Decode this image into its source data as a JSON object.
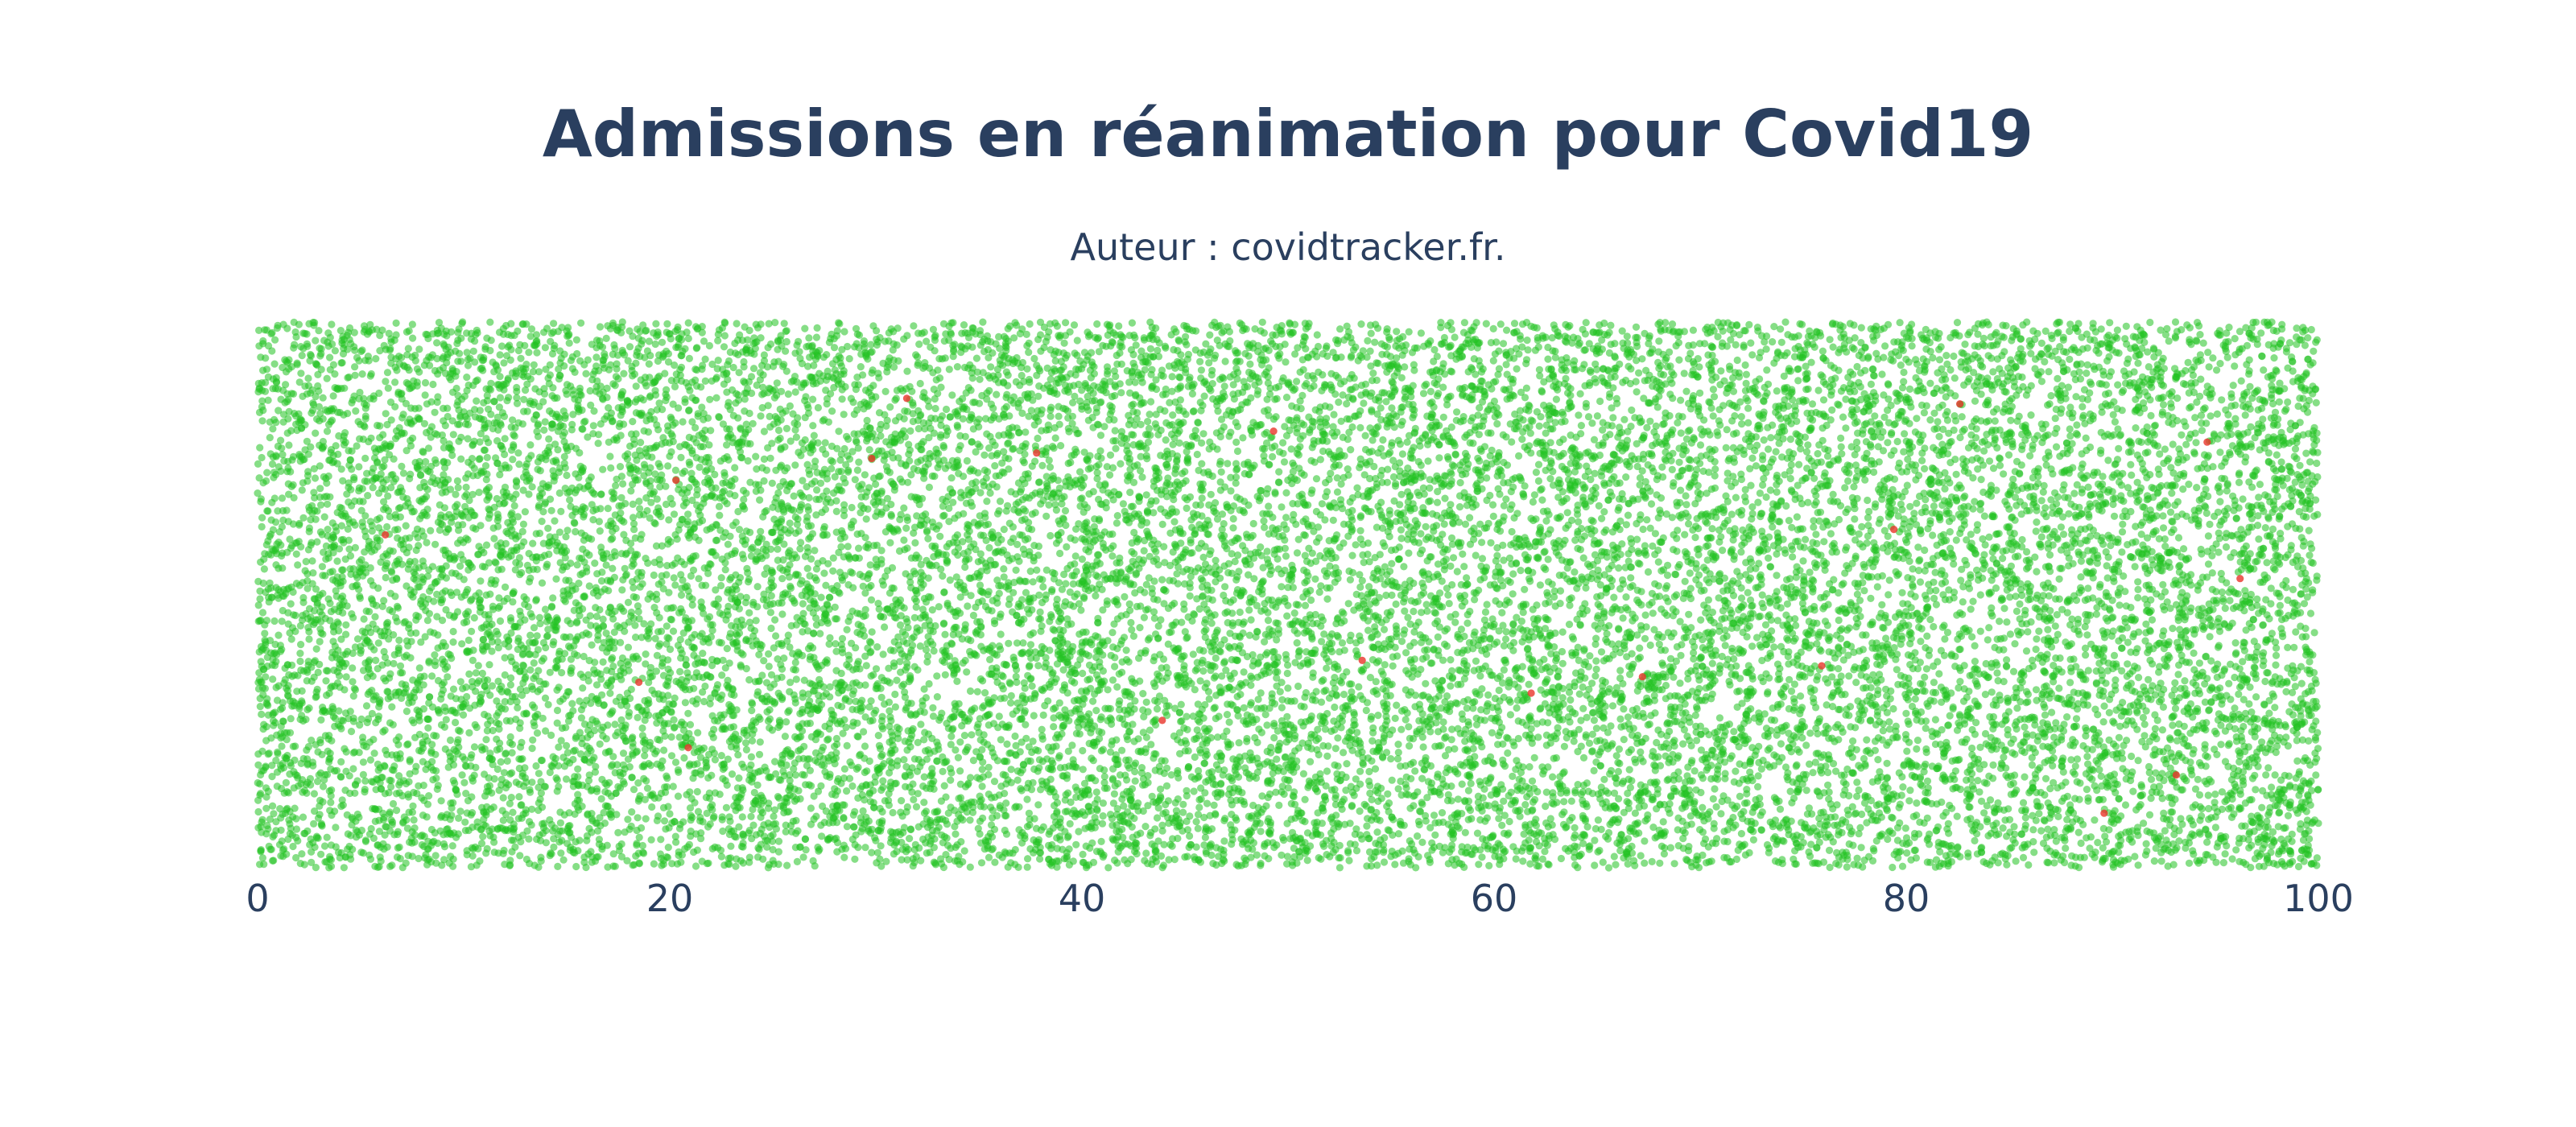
{
  "chart_data": {
    "type": "scatter",
    "title": "Admissions en réanimation pour Covid19",
    "subtitle": "Auteur : covidtracker.fr.",
    "xlim": [
      0,
      100
    ],
    "xticks": [
      0,
      20,
      40,
      60,
      80,
      100
    ],
    "x_tick_labels": [
      "0",
      "20",
      "40",
      "60",
      "80",
      "100"
    ],
    "ylim": [
      0,
      1
    ],
    "yaxis_visible": false,
    "grid": false,
    "legend": "none",
    "series": [
      {
        "color": "#22c322",
        "marker": "circle",
        "opacity": 0.55,
        "approx_point_count": 20000
      },
      {
        "color": "#e8342a",
        "marker": "circle",
        "opacity": 0.8,
        "points": [
          {
            "x": 6.2,
            "y": 0.61
          },
          {
            "x": 18.5,
            "y": 0.34
          },
          {
            "x": 20.3,
            "y": 0.71
          },
          {
            "x": 20.9,
            "y": 0.22
          },
          {
            "x": 29.8,
            "y": 0.75
          },
          {
            "x": 31.5,
            "y": 0.86
          },
          {
            "x": 37.8,
            "y": 0.76
          },
          {
            "x": 43.9,
            "y": 0.27
          },
          {
            "x": 49.3,
            "y": 0.8
          },
          {
            "x": 53.6,
            "y": 0.38
          },
          {
            "x": 61.8,
            "y": 0.32
          },
          {
            "x": 67.2,
            "y": 0.35
          },
          {
            "x": 75.9,
            "y": 0.37
          },
          {
            "x": 79.4,
            "y": 0.62
          },
          {
            "x": 82.6,
            "y": 0.85
          },
          {
            "x": 89.6,
            "y": 0.1
          },
          {
            "x": 93.1,
            "y": 0.17
          },
          {
            "x": 94.6,
            "y": 0.78
          },
          {
            "x": 96.2,
            "y": 0.53
          }
        ]
      }
    ]
  }
}
